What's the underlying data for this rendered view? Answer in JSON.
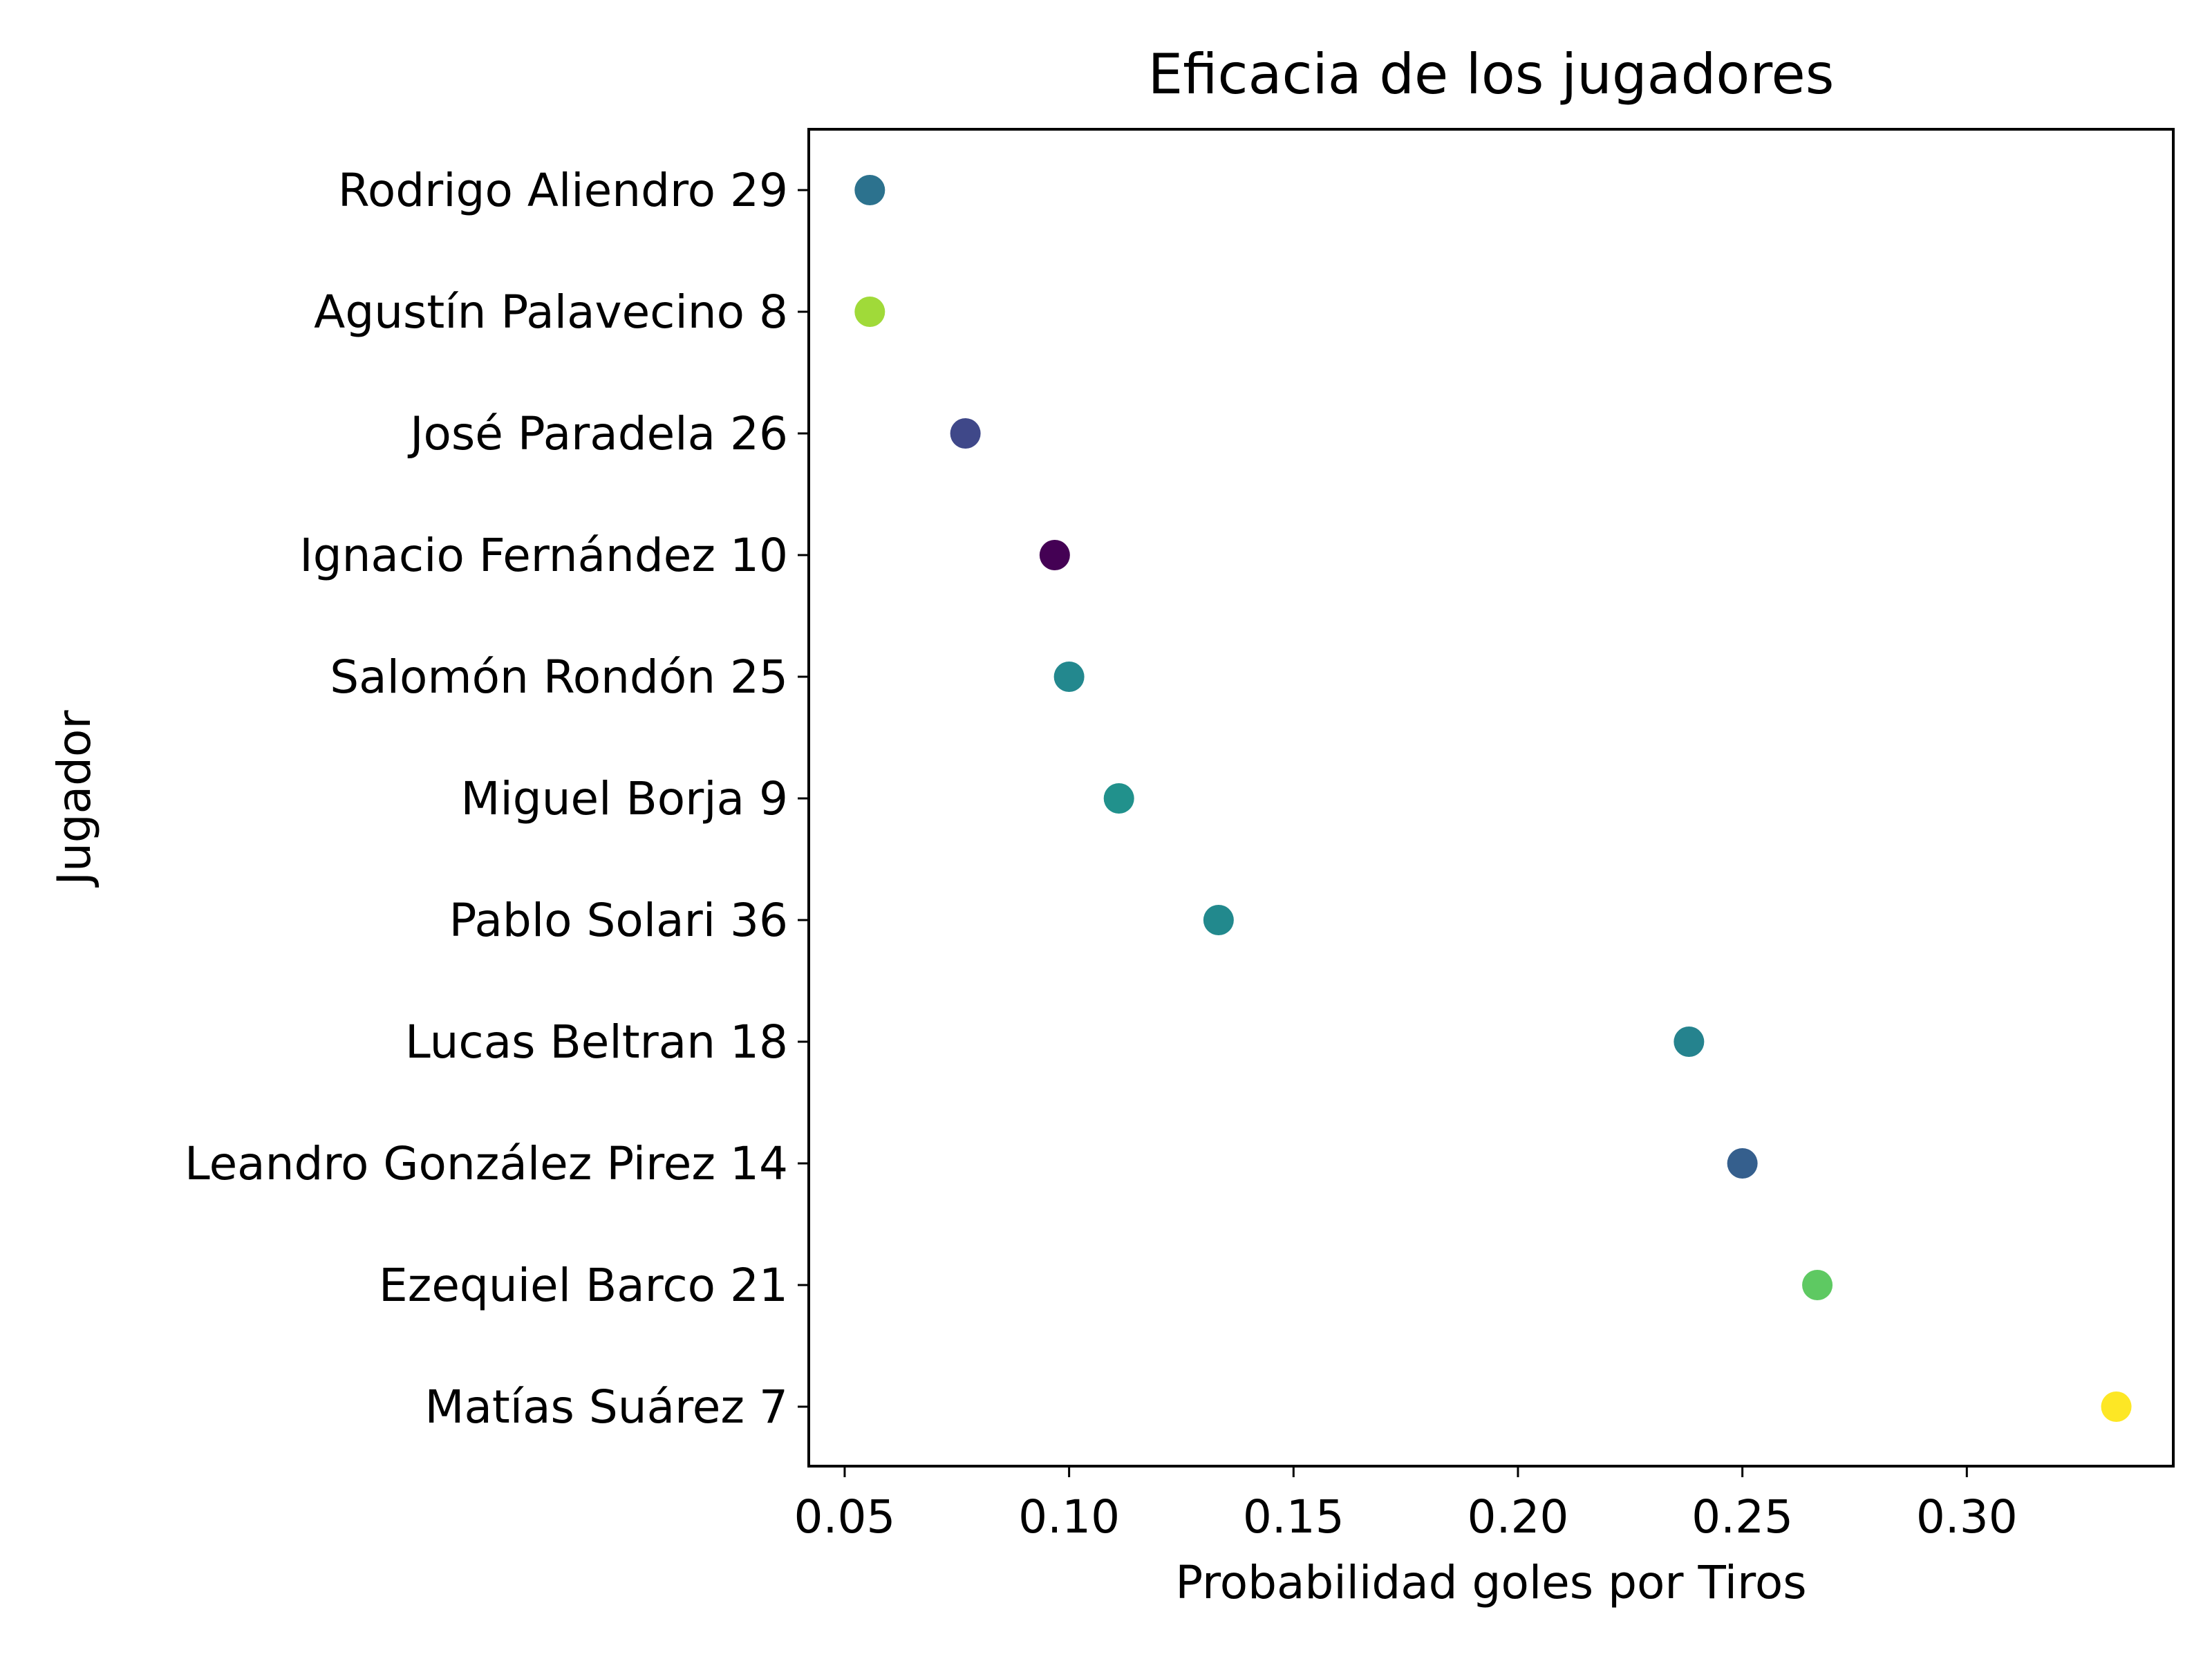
{
  "chart_data": {
    "type": "scatter",
    "title": "Eficacia de los jugadores",
    "xlabel": "Probabilidad goles por Tiros",
    "ylabel": "Jugador",
    "xlim": [
      0.042,
      0.346
    ],
    "xticks": [
      "0.05",
      "0.10",
      "0.15",
      "0.20",
      "0.25",
      "0.30"
    ],
    "grid": false,
    "points": [
      {
        "label": "Rodrigo Aliendro  29",
        "x": 0.0556,
        "color": "#2c728e"
      },
      {
        "label": "Agustín Palavecino  8",
        "x": 0.0556,
        "color": "#a0da39"
      },
      {
        "label": "José Paradela  26",
        "x": 0.0769,
        "color": "#3f4889"
      },
      {
        "label": "Ignacio Fernández  10",
        "x": 0.0968,
        "color": "#440154"
      },
      {
        "label": "Salomón Rondón  25",
        "x": 0.1,
        "color": "#23888e"
      },
      {
        "label": "Miguel Borja  9",
        "x": 0.1111,
        "color": "#21918c"
      },
      {
        "label": "Pablo Solari  36",
        "x": 0.1333,
        "color": "#22898d"
      },
      {
        "label": "Lucas Beltran  18",
        "x": 0.2381,
        "color": "#25838e"
      },
      {
        "label": "Leandro González Pirez  14",
        "x": 0.25,
        "color": "#355f8d"
      },
      {
        "label": "Ezequiel Barco  21",
        "x": 0.2667,
        "color": "#5ec962"
      },
      {
        "label": "Matías Suárez  7",
        "x": 0.3333,
        "color": "#fde725"
      }
    ]
  }
}
